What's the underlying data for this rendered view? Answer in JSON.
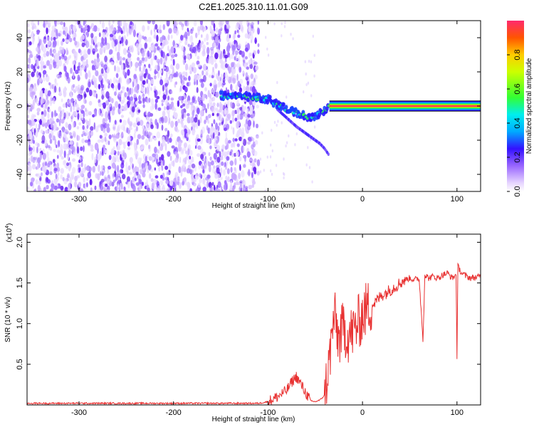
{
  "title": "C2E1.2025.310.11.01.G09",
  "chart_data": [
    {
      "type": "heatmap",
      "name": "spectrogram",
      "xlabel": "Height of straight line (km)",
      "ylabel": "Frequency (Hz)",
      "xlim": [
        -355,
        125
      ],
      "ylim": [
        -50,
        50
      ],
      "x_ticks": [
        -300,
        -200,
        -100,
        0,
        100
      ],
      "x_tick_labels": [
        "-300",
        "-200",
        "-100",
        "0",
        "100"
      ],
      "y_ticks": [
        -40,
        -20,
        0,
        20,
        40
      ],
      "y_tick_labels": [
        "-40",
        "-20",
        "0",
        "20",
        "40"
      ],
      "noise_region_x": [
        -355,
        -110
      ],
      "signal_trace": {
        "x": [
          -150,
          -130,
          -115,
          -100,
          -90,
          -80,
          -70,
          -60,
          -55,
          -50,
          -45,
          -40,
          -35,
          -30,
          -20,
          -10,
          0,
          20,
          40,
          60,
          80,
          100,
          125
        ],
        "freq": [
          6,
          6,
          5,
          4,
          1,
          -2,
          -4,
          -6,
          -7,
          -6,
          -4,
          -3,
          0,
          0,
          1,
          0,
          0,
          0,
          0,
          0,
          0,
          0,
          0
        ]
      },
      "secondary_trace": {
        "x": [
          -90,
          -80,
          -70,
          -60,
          -50,
          -45,
          -40,
          -35
        ],
        "freq": [
          -2,
          -7,
          -12,
          -16,
          -20,
          -22,
          -25,
          -29
        ]
      },
      "colorbar": {
        "label": "Normalized spectral amplitude",
        "ticks": [
          0.0,
          0.2,
          0.4,
          0.6,
          0.8
        ],
        "tick_labels": [
          "0.0",
          "0.2",
          "0.4",
          "0.6",
          "0.8"
        ],
        "range": [
          0,
          1
        ]
      }
    },
    {
      "type": "line",
      "name": "snr",
      "xlabel": "Height of straight line (km)",
      "ylabel": "SNR (10 * v/v)",
      "y_multiplier_label": "(x10",
      "y_multiplier_exp": "4",
      "y_multiplier_close": ")",
      "xlim": [
        -355,
        125
      ],
      "ylim": [
        0,
        2.1
      ],
      "x_ticks": [
        -300,
        -200,
        -100,
        0,
        100
      ],
      "x_tick_labels": [
        "-300",
        "-200",
        "-100",
        "0",
        "100"
      ],
      "y_ticks": [
        0.5,
        1.0,
        1.5,
        2.0
      ],
      "y_tick_labels": [
        "0.5",
        "1.0",
        "1.5",
        "2.0"
      ],
      "line_color": "#e83030",
      "x": [
        -355,
        -250,
        -150,
        -110,
        -100,
        -90,
        -80,
        -75,
        -70,
        -65,
        -60,
        -55,
        -50,
        -45,
        -40,
        -35,
        -30,
        -25,
        -20,
        -15,
        -10,
        -5,
        0,
        5,
        10,
        15,
        20,
        25,
        30,
        35,
        40,
        45,
        50,
        55,
        60,
        64,
        66,
        70,
        75,
        80,
        85,
        90,
        95,
        99,
        100,
        101,
        105,
        110,
        115,
        120,
        125
      ],
      "y": [
        0.02,
        0.02,
        0.02,
        0.02,
        0.04,
        0.1,
        0.18,
        0.28,
        0.35,
        0.25,
        0.15,
        0.05,
        0.04,
        0.06,
        0.12,
        0.55,
        1.1,
        0.8,
        0.95,
        0.85,
        0.9,
        1.0,
        1.1,
        1.2,
        1.22,
        1.28,
        1.35,
        1.38,
        1.42,
        1.46,
        1.5,
        1.54,
        1.56,
        1.54,
        1.55,
        0.8,
        1.6,
        1.56,
        1.58,
        1.56,
        1.6,
        1.62,
        1.56,
        1.6,
        0.6,
        1.7,
        1.62,
        1.58,
        1.56,
        1.57,
        1.58
      ]
    }
  ]
}
